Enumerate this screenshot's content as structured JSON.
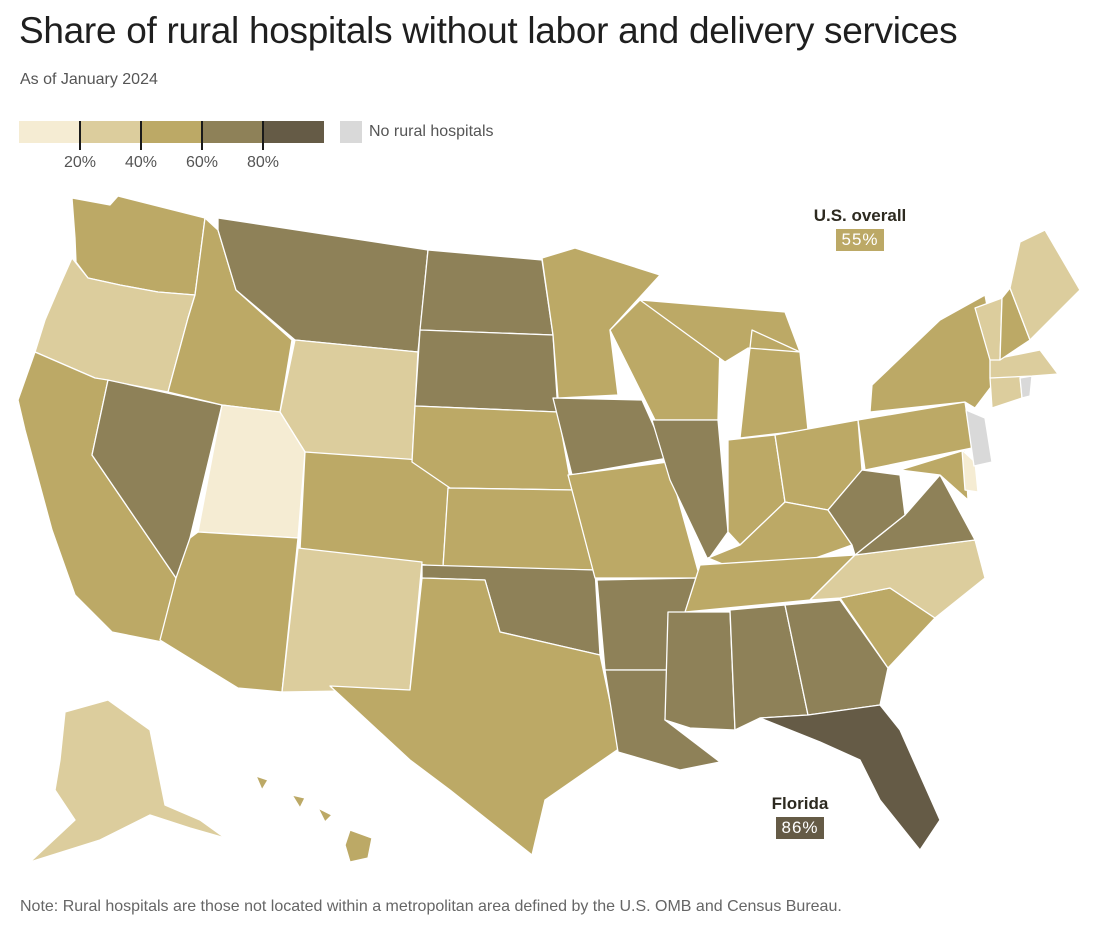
{
  "title": "Share of rural hospitals without labor and delivery services",
  "subtitle": "As of January 2024",
  "legend": {
    "bins": [
      {
        "range": "0-20%",
        "color": "#f5ecd3"
      },
      {
        "range": "20-40%",
        "color": "#dccd9d"
      },
      {
        "range": "40-60%",
        "color": "#bca966"
      },
      {
        "range": "60-80%",
        "color": "#8e8158"
      },
      {
        "range": "80-100%",
        "color": "#655b46"
      }
    ],
    "ticks": [
      "20%",
      "40%",
      "60%",
      "80%"
    ],
    "no_data_label": "No rural hospitals",
    "no_data_color": "#d9d9d9"
  },
  "callouts": {
    "us_overall": {
      "label": "U.S. overall",
      "value": "55%",
      "color": "#bca966"
    },
    "florida": {
      "label": "Florida",
      "value": "86%",
      "color": "#655b46"
    }
  },
  "chart_data": {
    "type": "choropleth",
    "metric": "Share of rural hospitals without labor and delivery services",
    "states": {
      "WA": "40-60%",
      "OR": "20-40%",
      "CA": "40-60%",
      "NV": "60-80%",
      "ID": "40-60%",
      "MT": "60-80%",
      "WY": "20-40%",
      "UT": "0-20%",
      "CO": "40-60%",
      "AZ": "40-60%",
      "NM": "20-40%",
      "ND": "60-80%",
      "SD": "60-80%",
      "NE": "40-60%",
      "KS": "40-60%",
      "OK": "60-80%",
      "TX": "40-60%",
      "MN": "40-60%",
      "IA": "60-80%",
      "MO": "40-60%",
      "AR": "60-80%",
      "LA": "60-80%",
      "WI": "40-60%",
      "IL": "60-80%",
      "MI": "40-60%",
      "IN": "40-60%",
      "OH": "40-60%",
      "KY": "40-60%",
      "TN": "40-60%",
      "MS": "60-80%",
      "AL": "60-80%",
      "GA": "60-80%",
      "FL": "80-100%",
      "SC": "40-60%",
      "NC": "20-40%",
      "VA": "60-80%",
      "WV": "60-80%",
      "PA": "40-60%",
      "NY": "40-60%",
      "VT": "20-40%",
      "NH": "40-60%",
      "ME": "20-40%",
      "MA": "20-40%",
      "CT": "20-40%",
      "RI": "No rural hospitals",
      "NJ": "No rural hospitals",
      "DE": "0-20%",
      "MD": "40-60%",
      "AK": "20-40%",
      "HI": "40-60%"
    },
    "us_overall": 55,
    "highlight": {
      "state": "Florida",
      "value": 86
    }
  },
  "note": "Note: Rural hospitals are those not located within a metropolitan area defined by the U.S. OMB and Census Bureau."
}
